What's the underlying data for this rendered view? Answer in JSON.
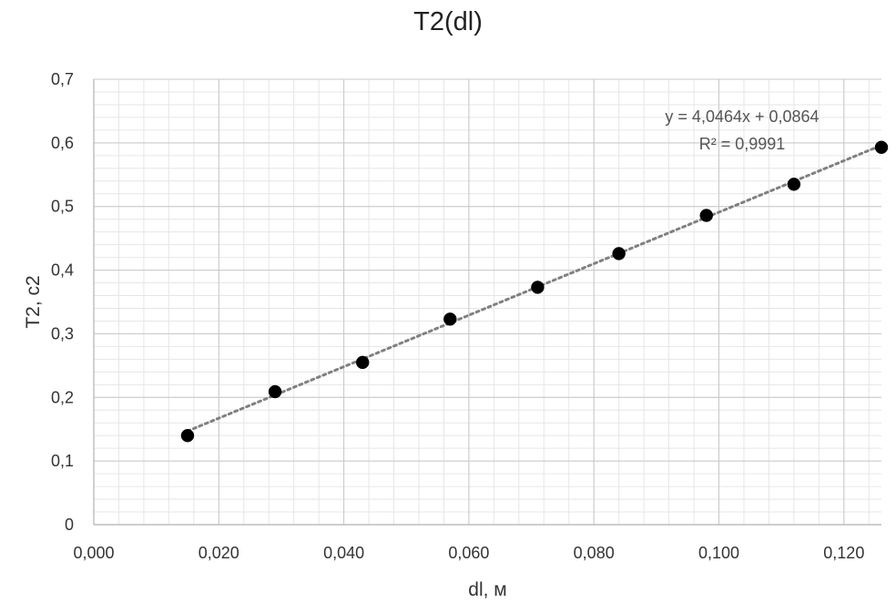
{
  "chart_data": {
    "type": "scatter",
    "title": "T2(dl)",
    "xlabel": "dl, м",
    "ylabel": "T2, c2",
    "xlim": [
      0,
      0.126
    ],
    "ylim": [
      0,
      0.7
    ],
    "x_ticks": [
      0,
      0.02,
      0.04,
      0.06,
      0.08,
      0.1,
      0.12
    ],
    "x_tick_labels": [
      "0,000",
      "0,020",
      "0,040",
      "0,060",
      "0,080",
      "0,100",
      "0,120"
    ],
    "y_ticks": [
      0,
      0.1,
      0.2,
      0.3,
      0.4,
      0.5,
      0.6,
      0.7
    ],
    "y_tick_labels": [
      "0",
      "0,1",
      "0,2",
      "0,3",
      "0,4",
      "0,5",
      "0,6",
      "0,7"
    ],
    "grid": true,
    "series": [
      {
        "x": [
          0.015,
          0.029,
          0.043,
          0.057,
          0.071,
          0.084,
          0.098,
          0.112,
          0.126
        ],
        "y": [
          0.14,
          0.209,
          0.255,
          0.323,
          0.373,
          0.426,
          0.486,
          0.535,
          0.593
        ],
        "color": "#000000"
      }
    ],
    "trendline": {
      "type": "linear",
      "slope": 4.0464,
      "intercept": 0.0864,
      "x_range": [
        0.015,
        0.126
      ],
      "style": "dotted",
      "color": "#808080",
      "equation_label": "y = 4,0464x + 0,0864",
      "r2_label": "R² = 0,9991"
    }
  }
}
